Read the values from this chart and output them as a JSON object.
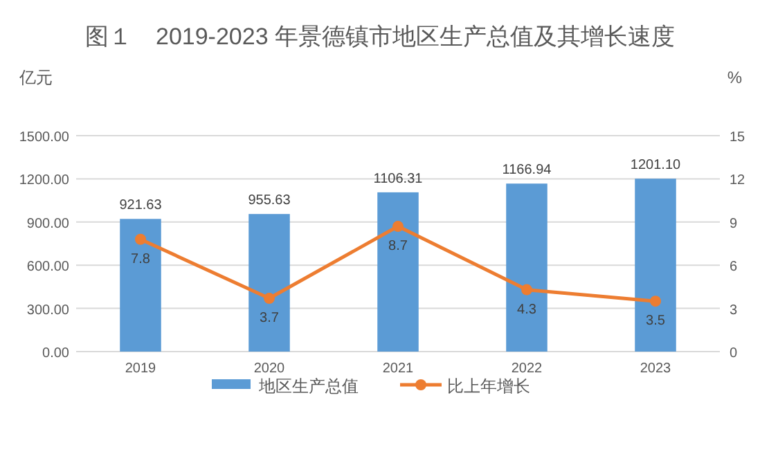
{
  "chart_data": {
    "type": "bar",
    "title": "图１　2019-2023 年景德镇市地区生产总值及其增长速度",
    "ylabel": "亿元",
    "y2label": "%",
    "categories": [
      "2019",
      "2020",
      "2021",
      "2022",
      "2023"
    ],
    "series": [
      {
        "name": "地区生产总值",
        "color": "#5b9bd5",
        "values": [
          921.63,
          955.63,
          1106.31,
          1166.94,
          1201.1
        ],
        "value_labels": [
          "921.63",
          "955.63",
          "1106.31",
          "1166.94",
          "1201.10"
        ]
      },
      {
        "name": "比上年增长",
        "type": "line",
        "axis": "y2",
        "color": "#ed7d31",
        "values": [
          7.8,
          3.7,
          8.7,
          4.3,
          3.5
        ],
        "value_labels": [
          "7.8",
          "3.7",
          "8.7",
          "4.3",
          "3.5"
        ]
      }
    ],
    "ylim": [
      0,
      1500
    ],
    "yticks": [
      {
        "value": 0,
        "label": "0.00"
      },
      {
        "value": 300,
        "label": "300.00"
      },
      {
        "value": 600,
        "label": "600.00"
      },
      {
        "value": 900,
        "label": "900.00"
      },
      {
        "value": 1200,
        "label": "1200.00"
      },
      {
        "value": 1500,
        "label": "1500.00"
      }
    ],
    "y2lim": [
      0,
      15
    ],
    "y2ticks": [
      0,
      3,
      6,
      9,
      12,
      15
    ],
    "grid": "y",
    "legend": "bottom",
    "marker": "circle",
    "line_style": "solid"
  }
}
